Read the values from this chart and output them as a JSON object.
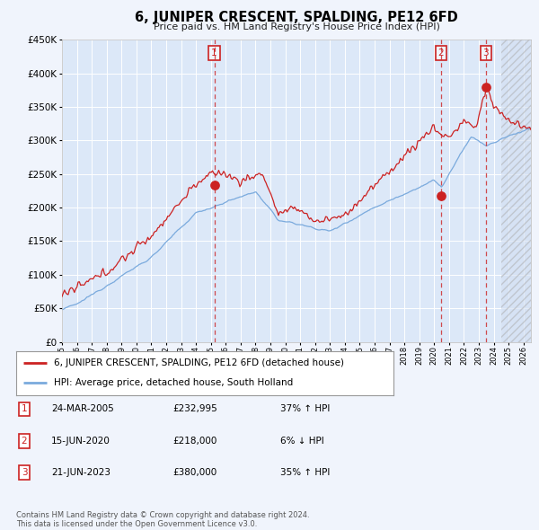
{
  "title": "6, JUNIPER CRESCENT, SPALDING, PE12 6FD",
  "subtitle": "Price paid vs. HM Land Registry's House Price Index (HPI)",
  "footer": "Contains HM Land Registry data © Crown copyright and database right 2024.\nThis data is licensed under the Open Government Licence v3.0.",
  "legend_line1": "6, JUNIPER CRESCENT, SPALDING, PE12 6FD (detached house)",
  "legend_line2": "HPI: Average price, detached house, South Holland",
  "transactions": [
    {
      "label": "1",
      "date": "24-MAR-2005",
      "price": "£232,995",
      "hpi": "37% ↑ HPI",
      "year": 2005.23
    },
    {
      "label": "2",
      "date": "15-JUN-2020",
      "price": "£218,000",
      "hpi": "6% ↓ HPI",
      "year": 2020.46
    },
    {
      "label": "3",
      "date": "21-JUN-2023",
      "price": "£380,000",
      "hpi": "35% ↑ HPI",
      "year": 2023.47
    }
  ],
  "transaction_values": [
    232995,
    218000,
    380000
  ],
  "hpi_color": "#7aaadd",
  "price_color": "#cc2222",
  "background_color": "#f0f4fc",
  "plot_bg_color": "#dce8f8",
  "grid_color": "#ffffff",
  "ylim": [
    0,
    450000
  ],
  "xlim_start": 1995,
  "xlim_end": 2026.5,
  "hatch_start": 2024.5,
  "ytick_values": [
    0,
    50000,
    100000,
    150000,
    200000,
    250000,
    300000,
    350000,
    400000,
    450000
  ]
}
